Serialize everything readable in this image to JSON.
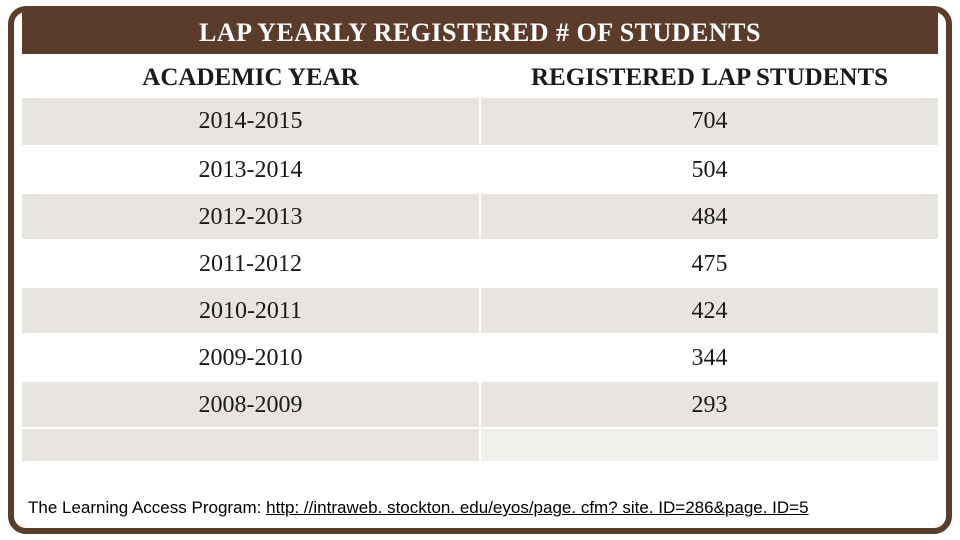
{
  "title": "LAP YEARLY REGISTERED # OF STUDENTS",
  "columns": [
    "ACADEMIC YEAR",
    "REGISTERED LAP STUDENTS"
  ],
  "rows": [
    {
      "year": "2014-2015",
      "students": "704"
    },
    {
      "year": "2013-2014",
      "students": "504"
    },
    {
      "year": "2012-2013",
      "students": "484"
    },
    {
      "year": "2011-2012",
      "students": "475"
    },
    {
      "year": "2010-2011",
      "students": "424"
    },
    {
      "year": "2009-2010",
      "students": "344"
    },
    {
      "year": "2008-2009",
      "students": "293"
    }
  ],
  "footer_label": "The Learning Access Program: ",
  "footer_link": "http: //intraweb. stockton. edu/eyos/page. cfm? site. ID=286&page. ID=5",
  "colors": {
    "frame": "#5b3b29",
    "alt_a": "#e8e5e0",
    "alt_b": "#ffffff",
    "text": "#1a1a1a",
    "bg": "#ffffff"
  },
  "fonts": {
    "title_size": 26,
    "header_size": 25,
    "cell_size": 24,
    "footer_size": 17
  }
}
